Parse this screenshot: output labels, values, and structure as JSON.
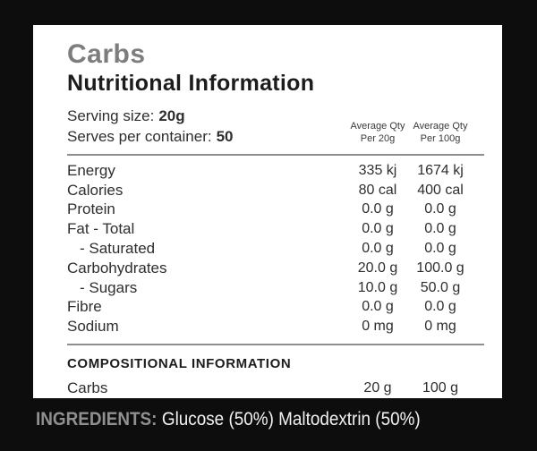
{
  "panel": {
    "title": "Carbs",
    "subtitle": "Nutritional Information",
    "serving": {
      "size_label": "Serving size:",
      "size_value": "20g",
      "serves_label": "Serves per container:",
      "serves_value": "50"
    },
    "columns": [
      {
        "line1": "Average Qty",
        "line2": "Per 20g"
      },
      {
        "line1": "Average Qty",
        "line2": "Per 100g"
      }
    ],
    "rows": [
      {
        "label": "Energy",
        "per_serve": "335 kj",
        "per_100": "1674 kj"
      },
      {
        "label": "Calories",
        "per_serve": "80 cal",
        "per_100": "400 cal"
      },
      {
        "label": "Protein",
        "per_serve": "0.0 g",
        "per_100": "0.0 g"
      },
      {
        "label": "Fat - Total",
        "per_serve": "0.0 g",
        "per_100": "0.0 g"
      },
      {
        "label": "- Saturated",
        "per_serve": "0.0 g",
        "per_100": "0.0 g"
      },
      {
        "label": "Carbohydrates",
        "per_serve": "20.0 g",
        "per_100": "100.0 g"
      },
      {
        "label": "- Sugars",
        "per_serve": "10.0 g",
        "per_100": "50.0 g"
      },
      {
        "label": "Fibre",
        "per_serve": "0.0 g",
        "per_100": "0.0 g"
      },
      {
        "label": "Sodium",
        "per_serve": "0 mg",
        "per_100": "0 mg"
      }
    ],
    "compositional": {
      "heading": "COMPOSITIONAL INFORMATION",
      "row": {
        "label": "Carbs",
        "per_serve": "20 g",
        "per_100": "100 g"
      }
    }
  },
  "footer": {
    "ingredients_label": "INGREDIENTS:",
    "ingredients_value": "Glucose (50%) Maltodextrin (50%)"
  },
  "colors": {
    "background": "#0d0d0d",
    "panel": "#ffffff",
    "title_gray": "#7d7d7d",
    "text": "#2e2e2e",
    "divider": "#8e8e8e",
    "ingredients_label": "#909090",
    "ingredients_text": "#f2f2f2"
  }
}
